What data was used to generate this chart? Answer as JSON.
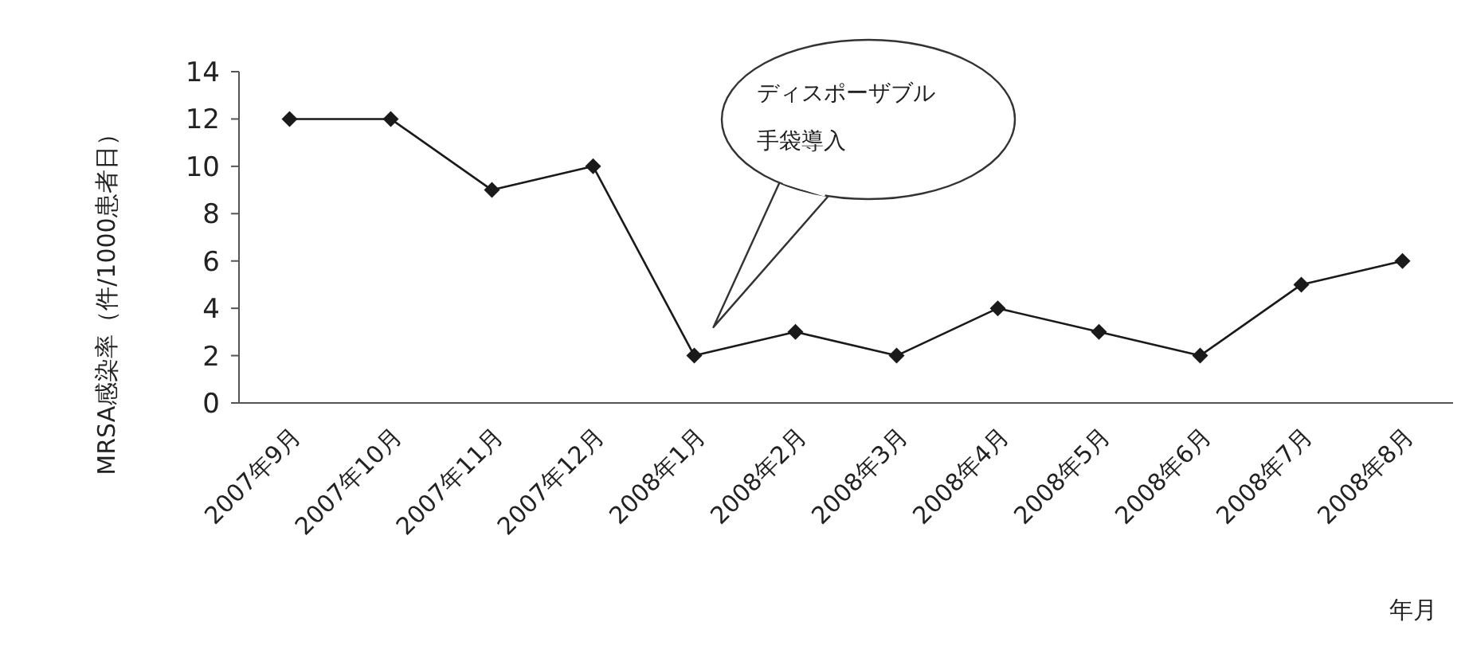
{
  "chart_data": {
    "type": "line",
    "xlabel": "年月",
    "ylabel": "MRSA感染率（件/1000患者日）",
    "categories": [
      "2007年9月",
      "2007年10月",
      "2007年11月",
      "2007年12月",
      "2008年1月",
      "2008年2月",
      "2008年3月",
      "2008年4月",
      "2008年5月",
      "2008年6月",
      "2008年7月",
      "2008年8月"
    ],
    "values": [
      12,
      12,
      9,
      10,
      2,
      3,
      2,
      4,
      3,
      2,
      5,
      6
    ],
    "color": "#1a1a1a",
    "marker": "diamond",
    "line_style": "solid",
    "grid": false,
    "ylim": [
      0,
      14
    ],
    "yticks": [
      0,
      2,
      4,
      6,
      8,
      10,
      12,
      14
    ],
    "annotations": [
      "ディスポーザブル手袋導入"
    ]
  }
}
